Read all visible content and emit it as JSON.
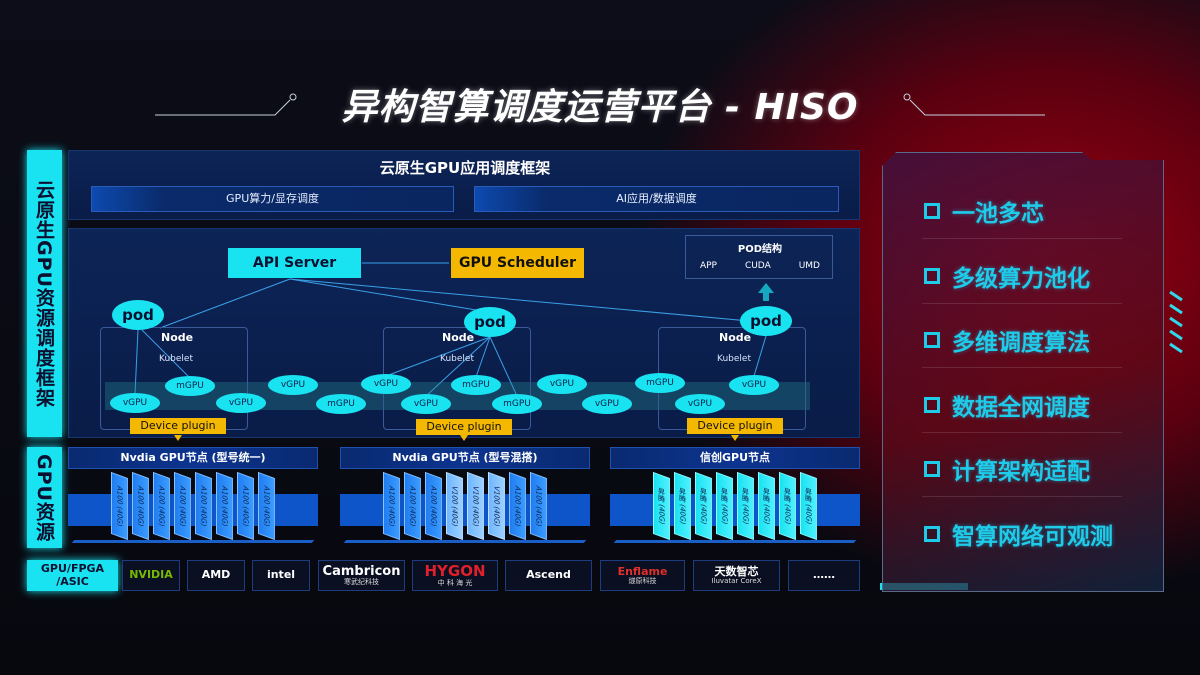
{
  "title": "异构智算调度运营平台 - HISO",
  "left_labels": {
    "framework": "云原生GPU资源调度框架",
    "resources": "GPU资源",
    "chips": "GPU/FPGA /ASIC"
  },
  "framework": {
    "title": "云原生GPU应用调度框架",
    "sub": [
      "GPU算力/显存调度",
      "AI应用/数据调度"
    ]
  },
  "cluster": {
    "api_server": "API Server",
    "gpu_scheduler": "GPU Scheduler",
    "pod_structure": {
      "title": "POD结构",
      "items": [
        "APP",
        "CUDA",
        "UMD"
      ]
    },
    "pod": "pod",
    "node": "Node",
    "kubelet": "Kubelet",
    "device_plugin": "Device plugin",
    "units": [
      "vGPU",
      "mGPU",
      "vGPU",
      "vGPU",
      "mGPU",
      "vGPU",
      "vGPU",
      "mGPU",
      "mGPU",
      "vGPU",
      "vGPU",
      "mGPU",
      "vGPU",
      "vGPU"
    ]
  },
  "gpu_nodes": [
    {
      "title": "Nvdia GPU节点 (型号统一)",
      "chips": [
        "A100 (40G)",
        "A100 (40G)",
        "A100 (40G)",
        "A100 (40G)",
        "A100 (40G)",
        "A100 (40G)",
        "A100 (40G)",
        "A100 (40G)"
      ]
    },
    {
      "title": "Nvdia GPU节点 (型号混搭)",
      "chips": [
        "A100 (40G)",
        "A100 (40G)",
        "A100 (40G)",
        "V100 (40G)",
        "V100 (40G)",
        "V100 (40G)",
        "A100 (40G)",
        "A100 (40G)"
      ]
    },
    {
      "title": "信创GPU节点",
      "chips": [
        "昇腾 (40G)",
        "昇腾 (40G)",
        "昇腾 (40G)",
        "昇腾 (40G)",
        "昇腾 (40G)",
        "昇腾 (40G)",
        "昇腾 (40G)",
        "昇腾 (40G)"
      ]
    }
  ],
  "vendors": [
    {
      "name": "NVIDIA",
      "sub": "",
      "color": "#76b900"
    },
    {
      "name": "AMD",
      "sub": "",
      "color": "#ffffff"
    },
    {
      "name": "intel",
      "sub": "",
      "color": "#ffffff"
    },
    {
      "name": "Cambricon",
      "sub": "寒武纪科技",
      "color": "#ffffff"
    },
    {
      "name": "HYGON",
      "sub": "中 科 海 光",
      "color": "#e0202a"
    },
    {
      "name": "Ascend",
      "sub": "",
      "color": "#ffffff"
    },
    {
      "name": "Enflame",
      "sub": "燧原科技",
      "color": "#e0302a"
    },
    {
      "name": "天数智芯",
      "sub": "Iluvatar CoreX",
      "color": "#ffffff"
    },
    {
      "name": "……",
      "sub": "",
      "color": "#ffffff"
    }
  ],
  "features": [
    "一池多芯",
    "多级算力池化",
    "多维调度算法",
    "数据全网调度",
    "计算架构适配",
    "智算网络可观测"
  ],
  "colors": {
    "cyan": "#19e3f0",
    "orange": "#f5b800",
    "blue": "#0d55c8"
  }
}
